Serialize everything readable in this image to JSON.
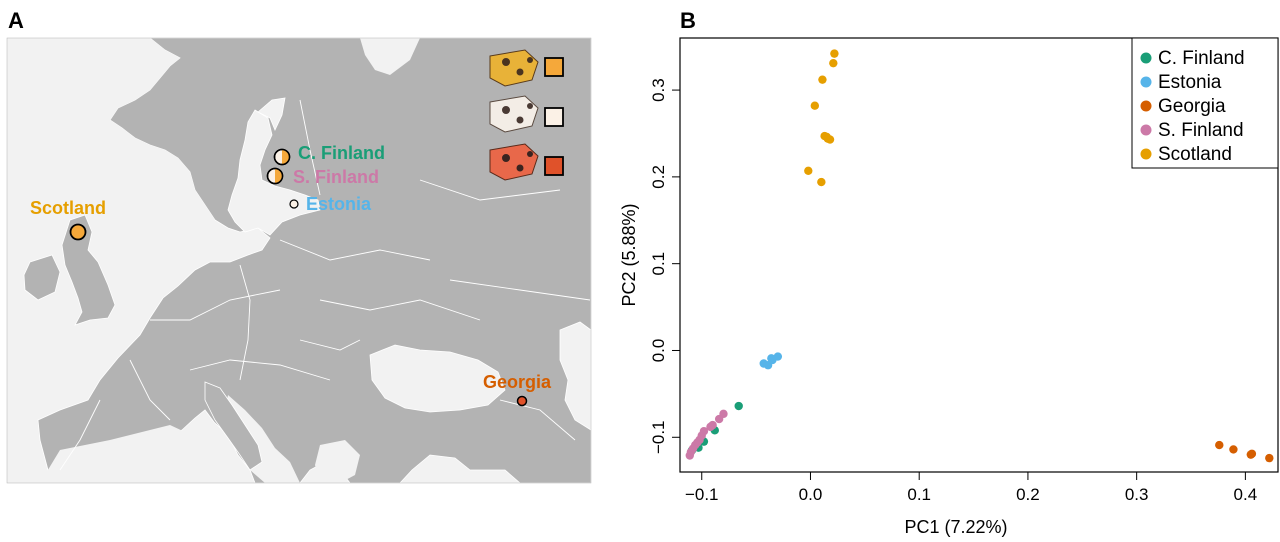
{
  "panel_a": {
    "letter": "A",
    "sites": [
      {
        "label": "Scotland",
        "color": "#E69F00",
        "pie": "full-orange"
      },
      {
        "label": "C. Finland",
        "color": "#009E73",
        "pie": "half-orange-white"
      },
      {
        "label": "S. Finland",
        "color": "#CC79A7",
        "pie": "half-orange-white"
      },
      {
        "label": "Estonia",
        "color": "#56B4E9",
        "pie": "white"
      },
      {
        "label": "Georgia",
        "color": "#D55E00",
        "pie": "full-red"
      }
    ],
    "morph_key": [
      {
        "name": "orange-hindwing-morph",
        "color": "#F5A83A"
      },
      {
        "name": "white-hindwing-morph",
        "color": "#FBF1E6"
      },
      {
        "name": "red-hindwing-morph",
        "color": "#E0522A"
      }
    ],
    "colors": {
      "sea": "#F2F2F2",
      "land": "#B3B3B3",
      "border": "#FFFFFF"
    }
  },
  "panel_b": {
    "letter": "B"
  },
  "chart_data": {
    "type": "scatter",
    "xlabel": "PC1 (7.22%)",
    "ylabel": "PC2 (5.88%)",
    "xlim": [
      -0.12,
      0.43
    ],
    "ylim": [
      -0.14,
      0.36
    ],
    "xticks": [
      -0.1,
      0.0,
      0.1,
      0.2,
      0.3,
      0.4
    ],
    "xtick_labels": [
      "−0.1",
      "0.0",
      "0.1",
      "0.2",
      "0.3",
      "0.4"
    ],
    "yticks": [
      -0.1,
      0.0,
      0.1,
      0.2,
      0.3
    ],
    "ytick_labels": [
      "−0.1",
      "0.0",
      "0.1",
      "0.2",
      "0.3"
    ],
    "legend_position": "top-right",
    "grid": false,
    "series": [
      {
        "name": "C. Finland",
        "color": "#1A9E77",
        "points": [
          [
            -0.066,
            -0.064
          ],
          [
            -0.088,
            -0.092
          ],
          [
            -0.098,
            -0.105
          ],
          [
            -0.103,
            -0.112
          ],
          [
            -0.109,
            -0.115
          ]
        ]
      },
      {
        "name": "Estonia",
        "color": "#56B4E9",
        "points": [
          [
            -0.043,
            -0.015
          ],
          [
            -0.039,
            -0.017
          ],
          [
            -0.035,
            -0.011
          ],
          [
            -0.03,
            -0.007
          ],
          [
            -0.036,
            -0.009
          ]
        ]
      },
      {
        "name": "Georgia",
        "color": "#D55E00",
        "points": [
          [
            0.376,
            -0.109
          ],
          [
            0.389,
            -0.114
          ],
          [
            0.405,
            -0.12
          ],
          [
            0.406,
            -0.119
          ],
          [
            0.422,
            -0.124
          ]
        ]
      },
      {
        "name": "S. Finland",
        "color": "#CC79A7",
        "points": [
          [
            -0.08,
            -0.073
          ],
          [
            -0.084,
            -0.079
          ],
          [
            -0.09,
            -0.086
          ],
          [
            -0.092,
            -0.088
          ],
          [
            -0.098,
            -0.093
          ],
          [
            -0.1,
            -0.098
          ],
          [
            -0.102,
            -0.103
          ],
          [
            -0.104,
            -0.106
          ],
          [
            -0.106,
            -0.109
          ],
          [
            -0.108,
            -0.113
          ],
          [
            -0.11,
            -0.117
          ],
          [
            -0.111,
            -0.121
          ]
        ]
      },
      {
        "name": "Scotland",
        "color": "#E69F00",
        "points": [
          [
            0.022,
            0.342
          ],
          [
            0.021,
            0.331
          ],
          [
            0.011,
            0.312
          ],
          [
            0.004,
            0.282
          ],
          [
            0.013,
            0.247
          ],
          [
            0.015,
            0.246
          ],
          [
            0.018,
            0.243
          ],
          [
            0.016,
            0.244
          ],
          [
            -0.002,
            0.207
          ],
          [
            0.01,
            0.194
          ]
        ]
      }
    ]
  }
}
